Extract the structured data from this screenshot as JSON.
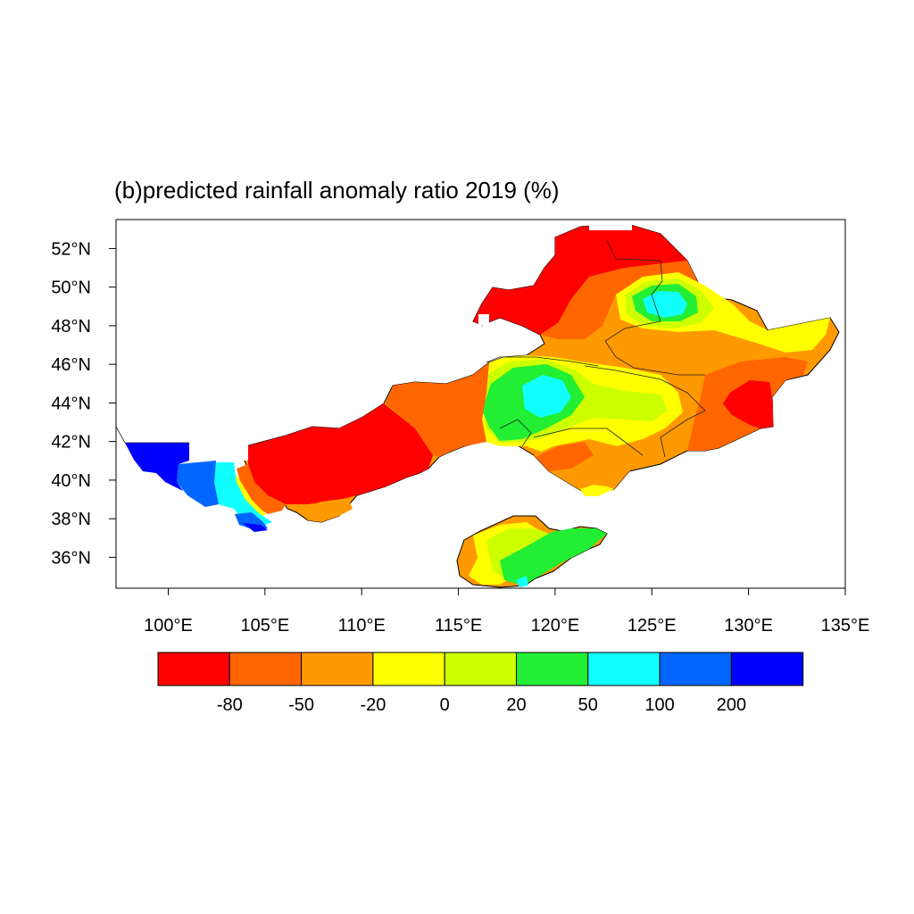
{
  "map": {
    "title": "(b)predicted rainfall anomaly ratio 2019 (%)",
    "lon_ticks": [
      "100°E",
      "105°E",
      "110°E",
      "115°E",
      "120°E",
      "125°E",
      "130°E",
      "135°E"
    ],
    "lat_ticks": [
      "52°N",
      "50°N",
      "48°N",
      "46°N",
      "44°N",
      "42°N",
      "40°N",
      "38°N",
      "36°N"
    ],
    "lon_range": [
      97.3,
      135
    ],
    "lat_range": [
      34.4,
      53.5
    ]
  },
  "colorbar": {
    "colors": [
      "#ff0000",
      "#ff6600",
      "#ff9900",
      "#ffff00",
      "#ccff00",
      "#22ee33",
      "#11ffff",
      "#0066ff",
      "#0000ff"
    ],
    "labels": [
      "-80",
      "-50",
      "-20",
      "0",
      "20",
      "50",
      "100",
      "200"
    ]
  }
}
